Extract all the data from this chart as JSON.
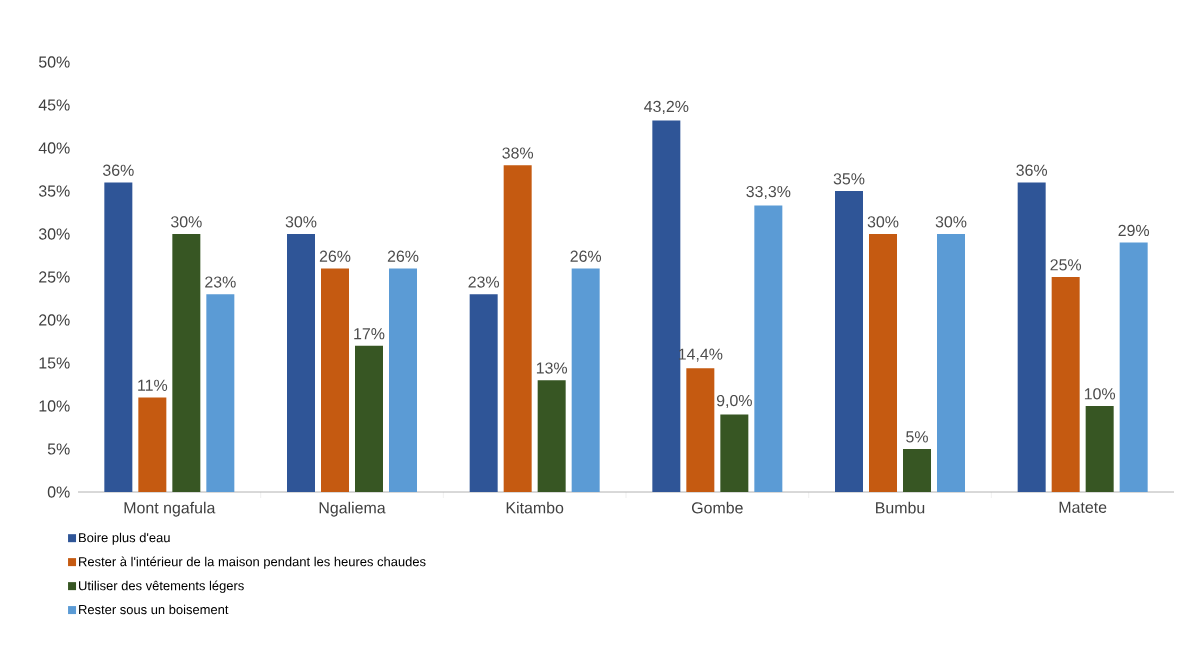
{
  "chart_data": {
    "type": "bar",
    "categories": [
      "Mont ngafula",
      "Ngaliema",
      "Kitambo",
      "Gombe",
      "Bumbu",
      "Matete"
    ],
    "series": [
      {
        "name": "Boire plus d'eau",
        "color": "#2f5597",
        "values": [
          36,
          30,
          23,
          43.2,
          35,
          36
        ],
        "value_labels": [
          "36%",
          "30%",
          "23%",
          "43,2%",
          "35%",
          "36%"
        ]
      },
      {
        "name": "Rester à l'intérieur de la maison pendant les heures chaudes",
        "color": "#c55a11",
        "values": [
          11,
          26,
          38,
          14.4,
          30,
          25
        ],
        "value_labels": [
          "11%",
          "26%",
          "38%",
          "14,4%",
          "30%",
          "25%"
        ]
      },
      {
        "name": "Utiliser des vêtements légers",
        "color": "#375623",
        "values": [
          30,
          17,
          13,
          9.0,
          5,
          10
        ],
        "value_labels": [
          "30%",
          "17%",
          "13%",
          "9,0%",
          "5%",
          "10%"
        ]
      },
      {
        "name": "Rester sous un boisement",
        "color": "#5b9bd5",
        "values": [
          23,
          26,
          26,
          33.3,
          30,
          29
        ],
        "value_labels": [
          "23%",
          "26%",
          "26%",
          "33,3%",
          "30%",
          "29%"
        ]
      }
    ],
    "ylim": [
      0,
      50
    ],
    "yticks": [
      {
        "value": 0,
        "label": "0%"
      },
      {
        "value": 5,
        "label": "5%"
      },
      {
        "value": 10,
        "label": "10%"
      },
      {
        "value": 15,
        "label": "15%"
      },
      {
        "value": 20,
        "label": "20%"
      },
      {
        "value": 25,
        "label": "25%"
      },
      {
        "value": 30,
        "label": "30%"
      },
      {
        "value": 35,
        "label": "35%"
      },
      {
        "value": 40,
        "label": "40%"
      },
      {
        "value": 45,
        "label": "45%"
      },
      {
        "value": 50,
        "label": "50%"
      }
    ],
    "grid": false,
    "legend": "bottom left"
  }
}
